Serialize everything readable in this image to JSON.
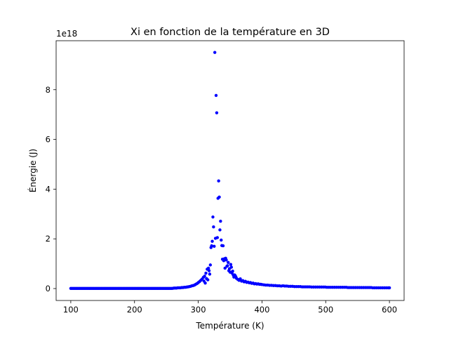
{
  "chart_data": {
    "type": "scatter",
    "title": "Xi en fonction de la température en 3D",
    "xlabel": "Température (K)",
    "ylabel": "Énergie (J)",
    "y_offset_label": "1e18",
    "y_scale_factor": 1e+18,
    "xlim": [
      77,
      623
    ],
    "ylim": [
      -0.48,
      9.97
    ],
    "x_ticks": [
      100,
      200,
      300,
      400,
      500,
      600
    ],
    "y_ticks": [
      0,
      2,
      4,
      6,
      8
    ],
    "grid": false,
    "legend": "none",
    "marker_color": "#0000ff",
    "series": [
      {
        "x": [
          260,
          262,
          264,
          266,
          268,
          270,
          272,
          274,
          276,
          278,
          280,
          282,
          284,
          286,
          288,
          290,
          292,
          294,
          296,
          298,
          300,
          302,
          304,
          306,
          308,
          309,
          310,
          311,
          312,
          313,
          314,
          315,
          316,
          317,
          318,
          319,
          320,
          321,
          322,
          323,
          324,
          325,
          326,
          327,
          328,
          329,
          330,
          331,
          332,
          333,
          334,
          335,
          336,
          337,
          338,
          339,
          340,
          341,
          342,
          343,
          344,
          345,
          346,
          347,
          348,
          349,
          350,
          351,
          352,
          353,
          354,
          355,
          356,
          357,
          358,
          359,
          360,
          362,
          364,
          366,
          368,
          370,
          372,
          374,
          376,
          378,
          380,
          382,
          384,
          386,
          388,
          390,
          392,
          394,
          396,
          398,
          400,
          403,
          406,
          409,
          412,
          415,
          418,
          421,
          424,
          427,
          430,
          433,
          436,
          439,
          442,
          445,
          448,
          451,
          454,
          457,
          460,
          463,
          466,
          469,
          472,
          475,
          478,
          481,
          484,
          487,
          490,
          493,
          496,
          499,
          502,
          505,
          508,
          511,
          514,
          517,
          520,
          523,
          526,
          529,
          532,
          535,
          538,
          541,
          544,
          547,
          550,
          553,
          556,
          559,
          562,
          565,
          568,
          571,
          574,
          577,
          580,
          583,
          586,
          589,
          592,
          595,
          598,
          600
        ],
        "y": [
          0.01,
          0.02,
          0.02,
          0.02,
          0.03,
          0.03,
          0.03,
          0.04,
          0.04,
          0.05,
          0.05,
          0.06,
          0.07,
          0.08,
          0.09,
          0.11,
          0.12,
          0.14,
          0.17,
          0.2,
          0.24,
          0.28,
          0.33,
          0.38,
          0.45,
          0.3,
          0.5,
          0.22,
          0.62,
          0.4,
          0.78,
          0.35,
          0.82,
          0.72,
          0.58,
          0.95,
          1.65,
          1.72,
          1.9,
          2.88,
          2.48,
          1.7,
          9.5,
          2.02,
          7.77,
          7.07,
          2.05,
          3.63,
          4.33,
          3.68,
          2.36,
          2.71,
          1.95,
          1.73,
          1.18,
          1.72,
          1.12,
          1.2,
          0.82,
          1.22,
          1.15,
          0.9,
          0.92,
          1.05,
          0.72,
          0.8,
          0.66,
          0.97,
          0.86,
          0.62,
          0.7,
          0.54,
          0.46,
          0.55,
          0.52,
          0.47,
          0.41,
          0.37,
          0.33,
          0.39,
          0.3,
          0.32,
          0.27,
          0.29,
          0.25,
          0.26,
          0.23,
          0.24,
          0.21,
          0.22,
          0.19,
          0.2,
          0.18,
          0.19,
          0.17,
          0.17,
          0.16,
          0.15,
          0.14,
          0.14,
          0.13,
          0.13,
          0.12,
          0.12,
          0.11,
          0.11,
          0.1,
          0.11,
          0.1,
          0.1,
          0.09,
          0.09,
          0.09,
          0.08,
          0.08,
          0.08,
          0.08,
          0.07,
          0.07,
          0.07,
          0.07,
          0.07,
          0.06,
          0.06,
          0.06,
          0.06,
          0.06,
          0.06,
          0.06,
          0.06,
          0.05,
          0.05,
          0.05,
          0.05,
          0.05,
          0.05,
          0.05,
          0.05,
          0.05,
          0.05,
          0.05,
          0.04,
          0.04,
          0.04,
          0.04,
          0.04,
          0.04,
          0.04,
          0.04,
          0.04,
          0.04,
          0.04,
          0.04,
          0.04,
          0.03,
          0.03,
          0.03,
          0.03,
          0.03,
          0.03,
          0.03,
          0.03,
          0.03,
          0.03
        ],
        "dense_baseline": {
          "x_start": 100,
          "x_end": 258,
          "x_step": 2,
          "y": 0.005
        }
      }
    ]
  }
}
